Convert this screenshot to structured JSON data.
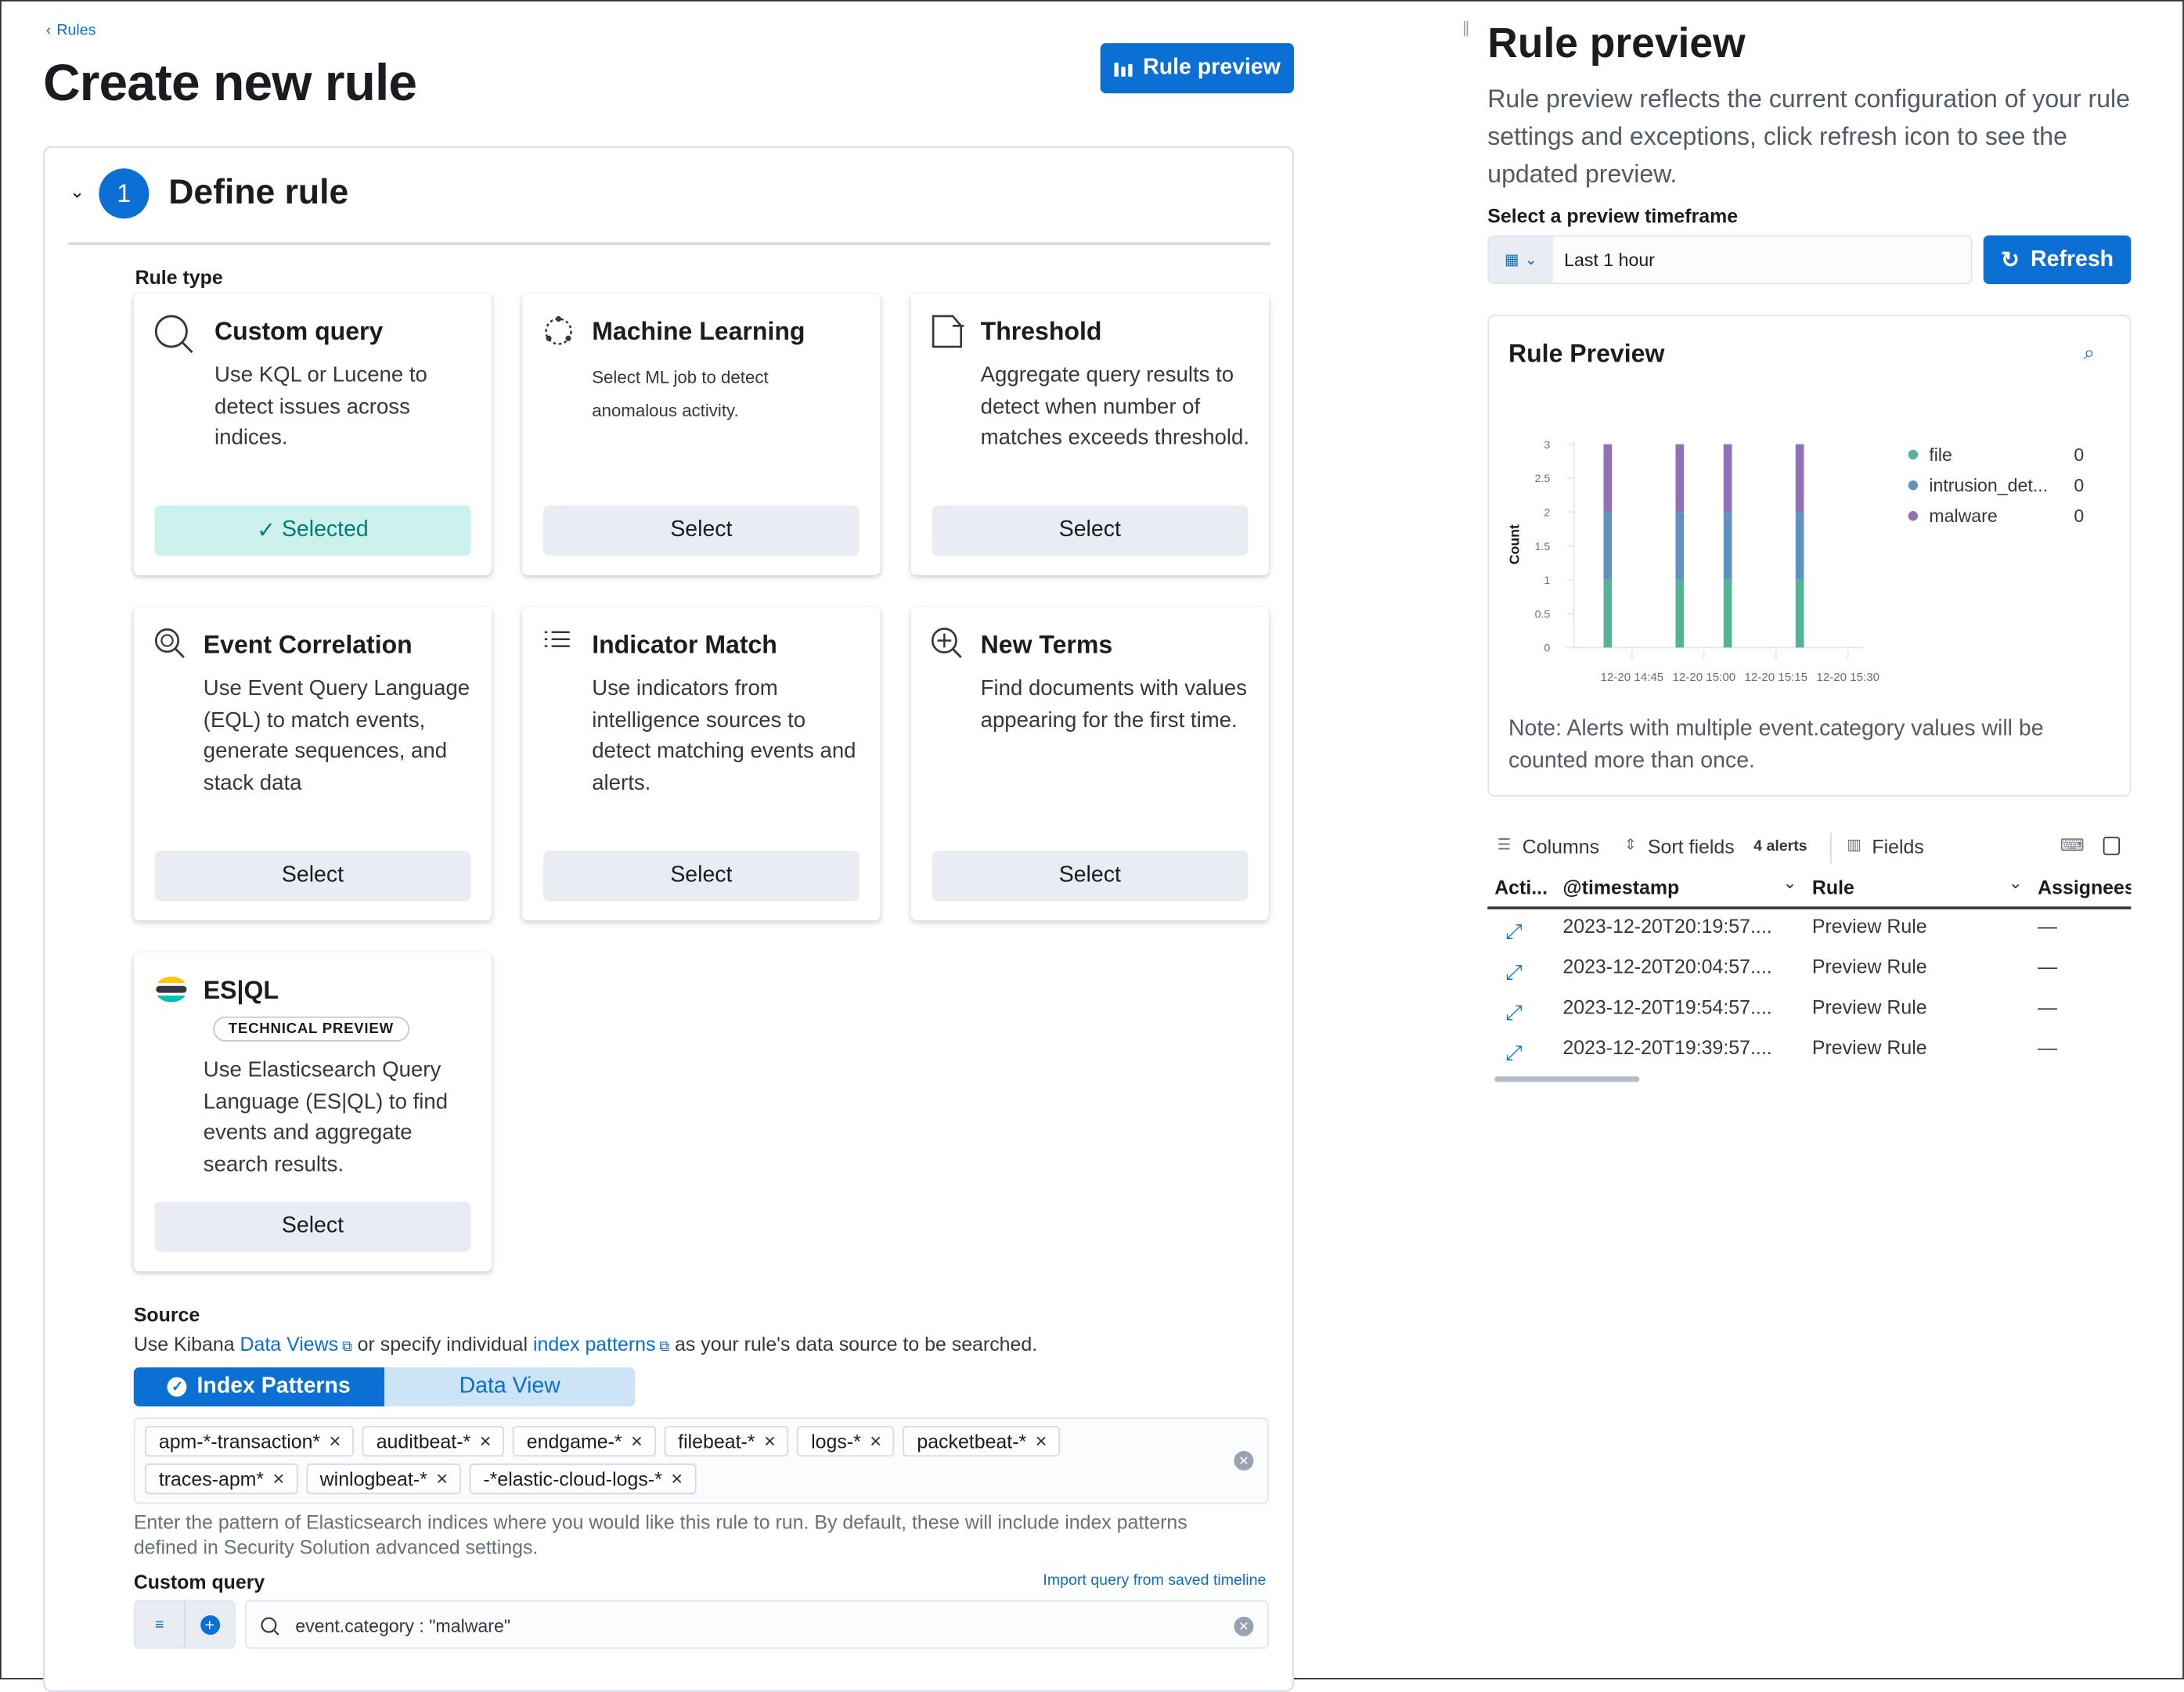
{
  "breadcrumb": {
    "label": "Rules"
  },
  "page_title": "Create new rule",
  "rule_preview_button": "Rule preview",
  "step": {
    "number": "1",
    "title": "Define rule"
  },
  "rule_type_label": "Rule type",
  "cards": [
    {
      "title": "Custom query",
      "description": "Use KQL or Lucene to detect issues across indices.",
      "button": "Selected",
      "selected": true,
      "icon": "search-icon"
    },
    {
      "title": "Machine Learning",
      "description": "Select ML job to detect anomalous activity.",
      "button": "Select",
      "icon": "ml-icon"
    },
    {
      "title": "Threshold",
      "description": "Aggregate query results to detect when number of matches exceeds threshold.",
      "button": "Select",
      "icon": "threshold-icon"
    },
    {
      "title": "Event Correlation",
      "description": "Use Event Query Language (EQL) to match events, generate sequences, and stack data",
      "button": "Select",
      "icon": "eql-icon"
    },
    {
      "title": "Indicator Match",
      "description": "Use indicators from intelligence sources to detect matching events and alerts.",
      "button": "Select",
      "icon": "list-icon"
    },
    {
      "title": "New Terms",
      "description": "Find documents with values appearing for the first time.",
      "button": "Select",
      "icon": "magnify-plus-icon"
    },
    {
      "title": "ES|QL",
      "badge": "TECHNICAL PREVIEW",
      "description": "Use Elasticsearch Query Language (ES|QL) to find events and aggregate search results.",
      "button": "Select",
      "icon": "esql-logo-icon"
    }
  ],
  "source": {
    "label": "Source",
    "desc_prefix": "Use Kibana ",
    "link1": "Data Views",
    "desc_middle": " or specify individual ",
    "link2": "index patterns",
    "desc_suffix": " as your rule's data source to be searched.",
    "tabs": [
      "Index Patterns",
      "Data View"
    ],
    "active_tab": "Index Patterns",
    "patterns": [
      "apm-*-transaction*",
      "auditbeat-*",
      "endgame-*",
      "filebeat-*",
      "logs-*",
      "packetbeat-*",
      "traces-apm*",
      "winlogbeat-*",
      "-*elastic-cloud-logs-*"
    ],
    "help": "Enter the pattern of Elasticsearch indices where you would like this rule to run. By default, these will include index patterns defined in Security Solution advanced settings."
  },
  "custom_query": {
    "label": "Custom query",
    "import_link": "Import query from saved timeline",
    "value": "event.category : \"malware\""
  },
  "preview": {
    "title": "Rule preview",
    "description": "Rule preview reflects the current configuration of your rule settings and exceptions, click refresh icon to see the updated preview.",
    "timeframe_label": "Select a preview timeframe",
    "timeframe_value": "Last 1 hour",
    "refresh": "Refresh",
    "panel_title": "Rule Preview",
    "note": "Note: Alerts with multiple event.category values will be counted more than once.",
    "toolbar": {
      "columns": "Columns",
      "sort": "Sort fields",
      "count": "4 alerts",
      "fields": "Fields"
    },
    "table": {
      "headers": [
        "Acti...",
        "@timestamp",
        "Rule",
        "Assignees"
      ],
      "rows": [
        {
          "timestamp": "2023-12-20T20:19:57....",
          "rule": "Preview Rule",
          "assignees": "—"
        },
        {
          "timestamp": "2023-12-20T20:04:57....",
          "rule": "Preview Rule",
          "assignees": "—"
        },
        {
          "timestamp": "2023-12-20T19:54:57....",
          "rule": "Preview Rule",
          "assignees": "—"
        },
        {
          "timestamp": "2023-12-20T19:39:57....",
          "rule": "Preview Rule",
          "assignees": "—"
        }
      ]
    }
  },
  "chart_data": {
    "type": "bar",
    "stacked": true,
    "ylabel": "Count",
    "ylim": [
      0,
      3
    ],
    "yticks": [
      "0",
      "0.5",
      "1",
      "1.5",
      "2",
      "2.5",
      "3"
    ],
    "xticks": [
      "12-20 14:45",
      "12-20 15:00",
      "12-20 15:15",
      "12-20 15:30"
    ],
    "x": [
      "14:39:57",
      "14:54:57",
      "15:04:57",
      "15:19:57"
    ],
    "series": [
      {
        "name": "file",
        "values": [
          1,
          1,
          1,
          1
        ],
        "color": "#54b399",
        "legend_value": "0"
      },
      {
        "name": "intrusion_det...",
        "values": [
          1,
          1,
          1,
          1
        ],
        "color": "#6092c0",
        "legend_value": "0"
      },
      {
        "name": "malware",
        "values": [
          1,
          1,
          1,
          1
        ],
        "color": "#9170b8",
        "legend_value": "0"
      }
    ],
    "legend": "right",
    "grid": false
  }
}
